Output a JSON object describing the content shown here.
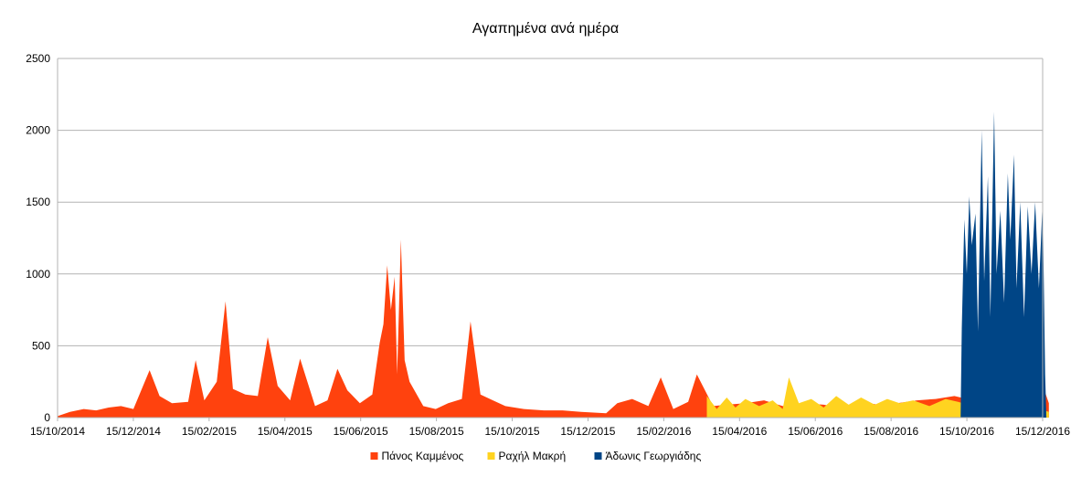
{
  "chart_data": {
    "type": "area",
    "title": "Αγαπημένα ανά ημέρα",
    "xlabel": "",
    "ylabel": "",
    "ylim": [
      0,
      2500
    ],
    "y_ticks": [
      0,
      500,
      1000,
      1500,
      2000,
      2500
    ],
    "x_tick_labels": [
      "15/10/2014",
      "15/12/2014",
      "15/02/2015",
      "15/04/2015",
      "15/06/2015",
      "15/08/2015",
      "15/10/2015",
      "15/12/2015",
      "15/02/2016",
      "15/04/2016",
      "15/06/2016",
      "15/08/2016",
      "15/10/2016",
      "15/12/2016"
    ],
    "grid": true,
    "legend_position": "bottom",
    "series": [
      {
        "name": "Πάνος Καμμένος",
        "color": "#ff420e",
        "points": [
          [
            "2014-10-15",
            10
          ],
          [
            "2014-10-25",
            40
          ],
          [
            "2014-11-05",
            60
          ],
          [
            "2014-11-15",
            50
          ],
          [
            "2014-11-25",
            70
          ],
          [
            "2014-12-05",
            80
          ],
          [
            "2014-12-15",
            60
          ],
          [
            "2014-12-28",
            330
          ],
          [
            "2015-01-05",
            150
          ],
          [
            "2015-01-15",
            100
          ],
          [
            "2015-01-28",
            110
          ],
          [
            "2015-02-03",
            400
          ],
          [
            "2015-02-10",
            120
          ],
          [
            "2015-02-20",
            250
          ],
          [
            "2015-02-27",
            810
          ],
          [
            "2015-03-05",
            200
          ],
          [
            "2015-03-15",
            160
          ],
          [
            "2015-03-25",
            150
          ],
          [
            "2015-04-02",
            560
          ],
          [
            "2015-04-10",
            220
          ],
          [
            "2015-04-20",
            120
          ],
          [
            "2015-04-28",
            410
          ],
          [
            "2015-05-10",
            80
          ],
          [
            "2015-05-20",
            120
          ],
          [
            "2015-05-28",
            340
          ],
          [
            "2015-06-05",
            190
          ],
          [
            "2015-06-15",
            100
          ],
          [
            "2015-06-25",
            160
          ],
          [
            "2015-07-01",
            520
          ],
          [
            "2015-07-04",
            650
          ],
          [
            "2015-07-07",
            1060
          ],
          [
            "2015-07-10",
            750
          ],
          [
            "2015-07-13",
            980
          ],
          [
            "2015-07-15",
            300
          ],
          [
            "2015-07-18",
            1240
          ],
          [
            "2015-07-21",
            400
          ],
          [
            "2015-07-25",
            250
          ],
          [
            "2015-08-05",
            80
          ],
          [
            "2015-08-15",
            60
          ],
          [
            "2015-08-25",
            100
          ],
          [
            "2015-09-05",
            130
          ],
          [
            "2015-09-12",
            670
          ],
          [
            "2015-09-20",
            160
          ],
          [
            "2015-09-30",
            120
          ],
          [
            "2015-10-10",
            80
          ],
          [
            "2015-10-25",
            60
          ],
          [
            "2015-11-10",
            50
          ],
          [
            "2015-11-25",
            50
          ],
          [
            "2015-12-10",
            40
          ],
          [
            "2015-12-30",
            30
          ],
          [
            "2016-01-08",
            100
          ],
          [
            "2016-01-20",
            130
          ],
          [
            "2016-02-02",
            80
          ],
          [
            "2016-02-12",
            280
          ],
          [
            "2016-02-22",
            60
          ],
          [
            "2016-03-05",
            110
          ],
          [
            "2016-03-12",
            300
          ],
          [
            "2016-03-25",
            80
          ],
          [
            "2016-04-05",
            90
          ],
          [
            "2016-04-20",
            100
          ],
          [
            "2016-05-05",
            120
          ],
          [
            "2016-05-20",
            80
          ],
          [
            "2016-06-05",
            100
          ],
          [
            "2016-06-22",
            90
          ],
          [
            "2016-07-05",
            70
          ],
          [
            "2016-07-20",
            110
          ],
          [
            "2016-08-05",
            90
          ],
          [
            "2016-08-20",
            100
          ],
          [
            "2016-09-05",
            120
          ],
          [
            "2016-09-20",
            130
          ],
          [
            "2016-10-05",
            150
          ],
          [
            "2016-10-20",
            120
          ],
          [
            "2016-11-01",
            250
          ],
          [
            "2016-11-15",
            150
          ],
          [
            "2016-12-01",
            310
          ],
          [
            "2016-12-10",
            350
          ],
          [
            "2016-12-20",
            100
          ]
        ]
      },
      {
        "name": "Ραχήλ Μακρή",
        "color": "#ffd320",
        "points": [
          [
            "2016-03-20",
            150
          ],
          [
            "2016-03-28",
            60
          ],
          [
            "2016-04-05",
            140
          ],
          [
            "2016-04-12",
            70
          ],
          [
            "2016-04-20",
            130
          ],
          [
            "2016-05-01",
            80
          ],
          [
            "2016-05-12",
            120
          ],
          [
            "2016-05-20",
            60
          ],
          [
            "2016-05-25",
            280
          ],
          [
            "2016-06-02",
            100
          ],
          [
            "2016-06-12",
            130
          ],
          [
            "2016-06-22",
            70
          ],
          [
            "2016-07-02",
            150
          ],
          [
            "2016-07-12",
            90
          ],
          [
            "2016-07-22",
            140
          ],
          [
            "2016-08-02",
            90
          ],
          [
            "2016-08-12",
            130
          ],
          [
            "2016-08-22",
            100
          ],
          [
            "2016-09-02",
            120
          ],
          [
            "2016-09-15",
            80
          ],
          [
            "2016-09-28",
            130
          ],
          [
            "2016-10-08",
            110
          ],
          [
            "2016-10-20",
            80
          ],
          [
            "2016-11-01",
            90
          ],
          [
            "2016-11-20",
            70
          ],
          [
            "2016-12-05",
            80
          ],
          [
            "2016-12-20",
            40
          ]
        ]
      },
      {
        "name": "Άδωνις Γεωργιάδης",
        "color": "#004586",
        "points": [
          [
            "2016-10-10",
            0
          ],
          [
            "2016-10-11",
            620
          ],
          [
            "2016-10-13",
            1380
          ],
          [
            "2016-10-15",
            1000
          ],
          [
            "2016-10-17",
            1540
          ],
          [
            "2016-10-19",
            1200
          ],
          [
            "2016-10-22",
            1420
          ],
          [
            "2016-10-24",
            600
          ],
          [
            "2016-10-27",
            2000
          ],
          [
            "2016-10-29",
            950
          ],
          [
            "2016-11-01",
            1680
          ],
          [
            "2016-11-03",
            700
          ],
          [
            "2016-11-06",
            2130
          ],
          [
            "2016-11-08",
            1000
          ],
          [
            "2016-11-11",
            1440
          ],
          [
            "2016-11-14",
            800
          ],
          [
            "2016-11-17",
            1700
          ],
          [
            "2016-11-19",
            1240
          ],
          [
            "2016-11-22",
            1830
          ],
          [
            "2016-11-24",
            900
          ],
          [
            "2016-11-27",
            1500
          ],
          [
            "2016-11-30",
            700
          ],
          [
            "2016-12-03",
            1470
          ],
          [
            "2016-12-06",
            1000
          ],
          [
            "2016-12-09",
            1500
          ],
          [
            "2016-12-12",
            900
          ],
          [
            "2016-12-15",
            1510
          ],
          [
            "2016-12-17",
            300
          ],
          [
            "2016-12-18",
            0
          ]
        ]
      }
    ]
  }
}
